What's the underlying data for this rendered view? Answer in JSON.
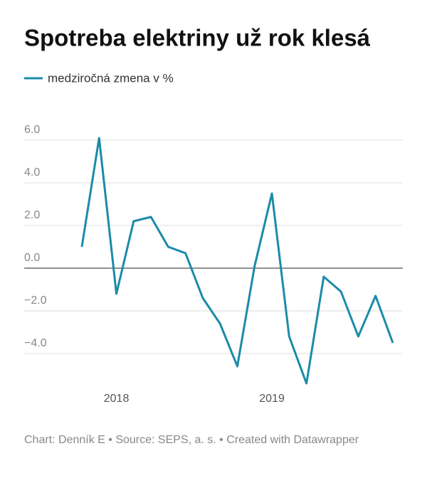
{
  "chart_data": {
    "type": "line",
    "title": "Spotreba elektriny už rok klesá",
    "categories": [
      null,
      null,
      "2018",
      null,
      null,
      null,
      null,
      null,
      null,
      null,
      null,
      "2019",
      null,
      null,
      null,
      null,
      null,
      null,
      null
    ],
    "series": [
      {
        "name": "medziročná zmena v %",
        "color": "#1b8ba8",
        "values": [
          1.0,
          6.1,
          -1.2,
          2.2,
          2.4,
          1.0,
          0.7,
          -1.4,
          -2.6,
          -4.6,
          0.1,
          3.5,
          -3.2,
          -5.4,
          -0.4,
          -1.1,
          -3.2,
          -1.3,
          -3.5
        ]
      }
    ],
    "ylim": [
      -5.6,
      6.6
    ],
    "yticks": [
      {
        "value": 6,
        "label": "6.0"
      },
      {
        "value": 4,
        "label": "4.0"
      },
      {
        "value": 2,
        "label": "2.0"
      },
      {
        "value": 0,
        "label": "0.0"
      },
      {
        "value": -2,
        "label": "−2.0"
      },
      {
        "value": -4,
        "label": "−4.0"
      }
    ],
    "grid": true,
    "footer": "Chart: Denník E • Source: SEPS, a. s. • Created with Datawrapper"
  }
}
